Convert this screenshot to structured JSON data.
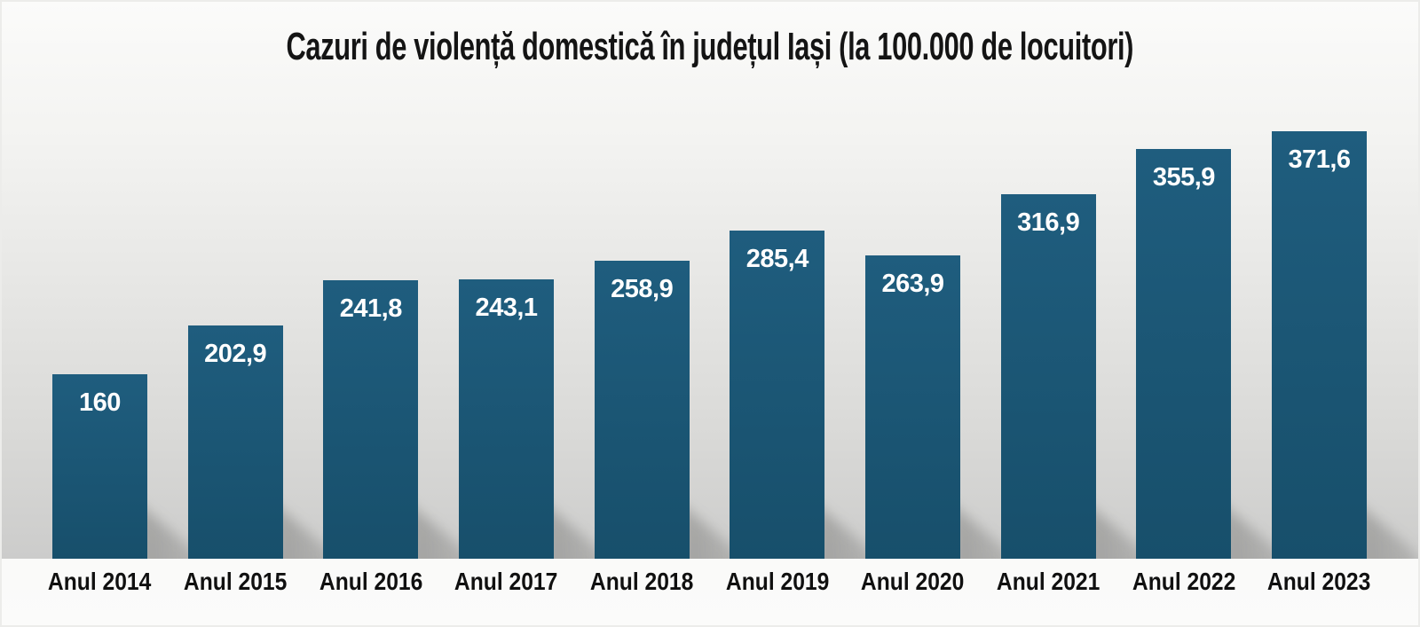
{
  "title": "Cazuri de violență domestică în județul Iași (la 100.000 de locuitori)",
  "chart_data": {
    "type": "bar",
    "title": "Cazuri de violență domestică în județul Iași (la 100.000 de locuitori)",
    "categories": [
      "Anul 2014",
      "Anul 2015",
      "Anul 2016",
      "Anul 2017",
      "Anul 2018",
      "Anul 2019",
      "Anul 2020",
      "Anul 2021",
      "Anul 2022",
      "Anul 2023"
    ],
    "values": [
      160,
      202.9,
      241.8,
      243.1,
      258.9,
      285.4,
      263.9,
      316.9,
      355.9,
      371.6
    ],
    "value_labels": [
      "160",
      "202,9",
      "241,8",
      "243,1",
      "258,9",
      "285,4",
      "263,9",
      "316,9",
      "355,9",
      "371,6"
    ],
    "xlabel": "",
    "ylabel": "",
    "ylim": [
      0,
      380
    ],
    "grid": false,
    "legend": false,
    "value_labels_position": "inside-top",
    "colors": {
      "bar_top": "#1f5d7e",
      "bar_bottom": "#174f6b",
      "value_label": "#ffffff",
      "axis_text": "#101010",
      "title_text": "#141414"
    }
  }
}
